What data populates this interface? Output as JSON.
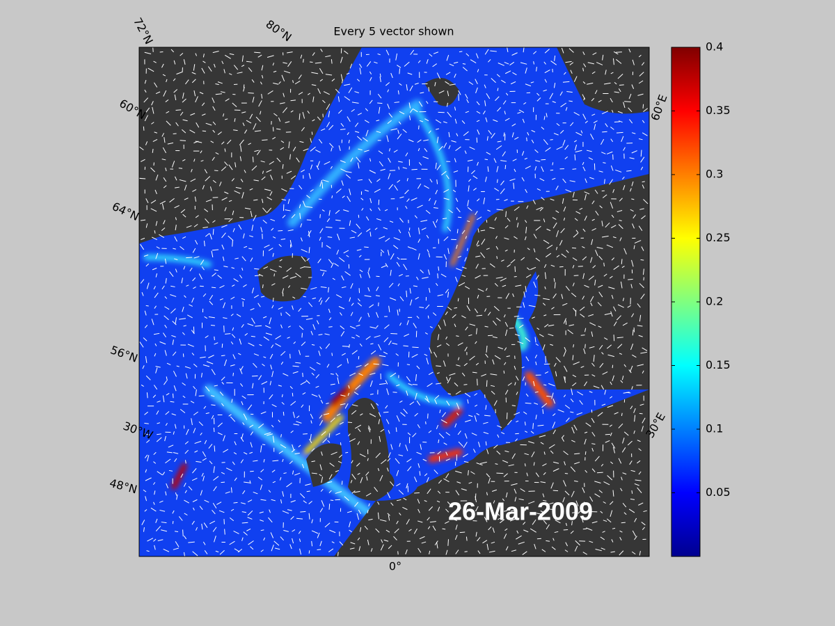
{
  "map": {
    "title": "Every 5 vector shown",
    "date": "26-Mar-2009",
    "grid_labels": [
      "72°N",
      "80°N",
      "60°N",
      "64°N",
      "56°N",
      "30°W",
      "48°N",
      "0°",
      "30°E",
      "60°E"
    ]
  },
  "colorbar": {
    "clim": [
      0,
      0.4
    ],
    "ticks": [
      0.05,
      0.1,
      0.15,
      0.2,
      0.25,
      0.3,
      0.35,
      0.4
    ]
  }
}
